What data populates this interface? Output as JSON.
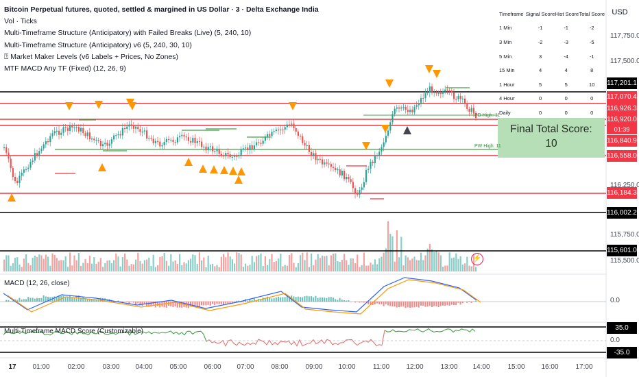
{
  "header": {
    "title": "Bitcoin Perpetual futures, quoted, settled & margined in US Dollar · 3 · Delta Exchange India",
    "indicators": [
      "Vol · Ticks",
      "Multi-Timeframe Structure (Anticipatory) with Failed Breaks (Live) (5, 240, 10)",
      "Multi-Timeframe Structure (Anticipatory) v6 (5, 240, 30, 10)",
      "⍰ Market Maker Levels (v6 Labels + Prices, No Zones)",
      "MTF MACD Any TF (Fixed) (12, 26, 9)"
    ]
  },
  "currency": "USD",
  "score_table": {
    "headers": [
      "Timeframe",
      "Signal Score",
      "Hist Score",
      "Total Score"
    ],
    "rows": [
      [
        "1 Min",
        "-1",
        "-1",
        "-2"
      ],
      [
        "3 Min",
        "-2",
        "-3",
        "-5"
      ],
      [
        "5 Min",
        "3",
        "-4",
        "-1"
      ],
      [
        "15 Min",
        "4",
        "4",
        "8"
      ],
      [
        "1 Hour",
        "5",
        "5",
        "10"
      ],
      [
        "4 Hour",
        "0",
        "0",
        "0"
      ],
      [
        "Daily",
        "0",
        "0",
        "0"
      ]
    ]
  },
  "final_score": {
    "label": "Final Total Score:",
    "value": "10"
  },
  "price_axis": {
    "ticks": [
      "117,750.0",
      "117,500.0",
      "116,250.0",
      "115,750.0",
      "115,500.0",
      "0.0",
      "0.0"
    ],
    "tags": [
      {
        "text": "117,201.1",
        "color": "#000000"
      },
      {
        "text": "117,070.4",
        "color": "#f23645"
      },
      {
        "text": "116,926.3",
        "color": "#f23645"
      },
      {
        "text": "116,920.0",
        "color": "#f23645"
      },
      {
        "text": "116,840.9",
        "color": "#f23645"
      },
      {
        "text": "116,558.0",
        "color": "#f23645"
      },
      {
        "text": "116,184.3",
        "color": "#f23645"
      },
      {
        "text": "116,002.2",
        "color": "#000000"
      },
      {
        "text": "115,601.0",
        "color": "#000000"
      },
      {
        "text": "35.0",
        "color": "#000000"
      },
      {
        "text": "-35.0",
        "color": "#000000"
      }
    ],
    "countdown": "01:39"
  },
  "level_labels": {
    "pd_high": "PD High: 11",
    "pw_high": "PW High: 11"
  },
  "macd_label": "MACD (12, 26, close)",
  "score_label": "Multi-Timeframe MACD Score (Customizable)",
  "time_axis": [
    "17",
    "01:00",
    "02:00",
    "03:00",
    "04:00",
    "05:00",
    "06:00",
    "07:00",
    "08:00",
    "09:00",
    "10:00",
    "11:00",
    "12:00",
    "13:00",
    "14:00",
    "15:00",
    "16:00",
    "17:00"
  ],
  "colors": {
    "up": "#26a69a",
    "down": "#ef5350",
    "red_line": "#f23645",
    "green_line": "#43a047",
    "triangle": "#ff9800",
    "macd": "#2962ff",
    "signal": "#ff9800"
  }
}
